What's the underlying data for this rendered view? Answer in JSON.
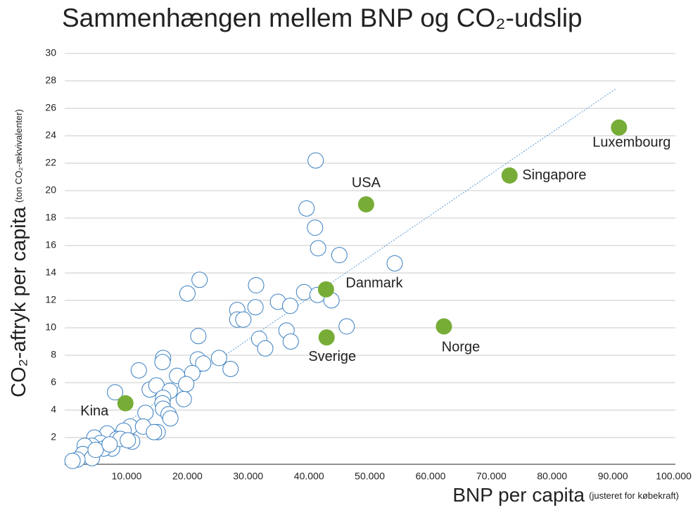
{
  "chart_data": {
    "type": "scatter",
    "title": "Sammenhængen mellem BNP og CO₂-udslip",
    "y_label": "CO₂-aftryk per capita",
    "y_label_note": "(ton CO₂-ækvivalenter)",
    "x_label": "BNP per capita",
    "x_label_note": "(justeret for købekraft)",
    "xlim": [
      0,
      100000
    ],
    "ylim": [
      0,
      30
    ],
    "xticks": [
      {
        "value": 10000,
        "label": "10.000"
      },
      {
        "value": 20000,
        "label": "20.000"
      },
      {
        "value": 30000,
        "label": "30.000"
      },
      {
        "value": 40000,
        "label": "40.000"
      },
      {
        "value": 50000,
        "label": "50.000"
      },
      {
        "value": 60000,
        "label": "60.000"
      },
      {
        "value": 70000,
        "label": "70.000"
      },
      {
        "value": 80000,
        "label": "80.000"
      },
      {
        "value": 90000,
        "label": "90.000"
      },
      {
        "value": 100000,
        "label": "100.000"
      }
    ],
    "yticks": [
      2,
      4,
      6,
      8,
      10,
      12,
      14,
      16,
      18,
      20,
      22,
      24,
      26,
      28,
      30
    ],
    "grid": true,
    "trendline": {
      "color": "#5b9bd5",
      "x": [
        700,
        90400
      ],
      "y": [
        0.3,
        27.4
      ]
    },
    "series": [
      {
        "color": "#3a7fc1",
        "fill": "#ffffff",
        "x": [
          41100,
          39600,
          41000,
          41500,
          45000,
          54100,
          22000,
          20000,
          31300,
          39200,
          41400,
          43700,
          34900,
          36900,
          31200,
          28200,
          28200,
          29200,
          46200,
          36300,
          21800,
          31800,
          37000,
          32800,
          16000,
          15900,
          25200,
          21700,
          22600,
          12000,
          27100,
          18300,
          20800,
          19800,
          8100,
          13800,
          14900,
          17100,
          16000,
          19400,
          15900,
          16000,
          16900,
          13100,
          17200,
          10600,
          9500,
          12700,
          6800,
          4700,
          8400,
          5700,
          4300,
          10900,
          15100,
          14500,
          7600,
          6200,
          3100,
          2800,
          4300,
          1900,
          1100,
          4900,
          9000,
          7200,
          10200
        ],
        "values": [
          22.2,
          18.7,
          17.3,
          15.8,
          15.3,
          14.7,
          13.5,
          12.5,
          13.1,
          12.6,
          12.4,
          12.0,
          11.9,
          11.6,
          11.5,
          11.3,
          10.6,
          10.6,
          10.1,
          9.8,
          9.4,
          9.2,
          9.0,
          8.5,
          7.8,
          7.5,
          7.8,
          7.7,
          7.4,
          6.9,
          7.0,
          6.5,
          6.7,
          5.9,
          5.3,
          5.5,
          5.8,
          5.4,
          4.9,
          4.8,
          4.5,
          4.1,
          3.7,
          3.8,
          3.4,
          2.8,
          2.5,
          2.8,
          2.3,
          2.0,
          1.9,
          1.6,
          1.4,
          1.7,
          2.4,
          2.4,
          1.2,
          1.2,
          1.4,
          0.8,
          0.5,
          0.4,
          0.3,
          1.1,
          1.9,
          1.5,
          1.8
        ]
      },
      {
        "color": "#77ad36",
        "fill": "#77ad36",
        "labels": [
          "Luxembourg",
          "Singapore",
          "USA",
          "Danmark",
          "Sverige",
          "Norge",
          "Kina"
        ],
        "x": [
          91000,
          73000,
          49400,
          42800,
          42900,
          62200,
          9800
        ],
        "values": [
          24.6,
          21.1,
          19.0,
          12.8,
          9.3,
          10.1,
          4.5
        ]
      }
    ]
  }
}
